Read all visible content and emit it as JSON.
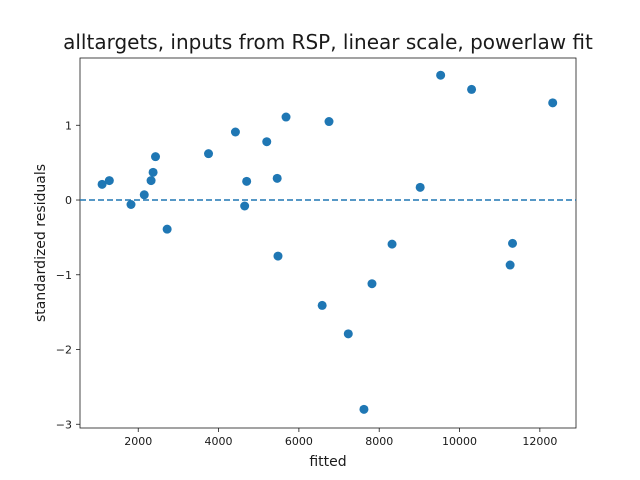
{
  "chart_data": {
    "type": "scatter",
    "title": "alltargets, inputs from RSP, linear scale, powerlaw fit",
    "xlabel": "fitted",
    "ylabel": "standardized residuals",
    "xlim": [
      550,
      12900
    ],
    "ylim": [
      -3.05,
      1.9
    ],
    "xticks": [
      2000,
      4000,
      6000,
      8000,
      10000,
      12000
    ],
    "yticks": [
      -3,
      -2,
      -1,
      0,
      1
    ],
    "grid": false,
    "reference_line": {
      "y": 0,
      "style": "dashed"
    },
    "marker_color": "#1f77b4",
    "points": [
      {
        "x": 1100,
        "y": 0.21
      },
      {
        "x": 1280,
        "y": 0.26
      },
      {
        "x": 1820,
        "y": -0.06
      },
      {
        "x": 2150,
        "y": 0.07
      },
      {
        "x": 2320,
        "y": 0.26
      },
      {
        "x": 2370,
        "y": 0.37
      },
      {
        "x": 2430,
        "y": 0.58
      },
      {
        "x": 2720,
        "y": -0.39
      },
      {
        "x": 3750,
        "y": 0.62
      },
      {
        "x": 4420,
        "y": 0.91
      },
      {
        "x": 4650,
        "y": -0.08
      },
      {
        "x": 4700,
        "y": 0.25
      },
      {
        "x": 5200,
        "y": 0.78
      },
      {
        "x": 5460,
        "y": 0.29
      },
      {
        "x": 5480,
        "y": -0.75
      },
      {
        "x": 5680,
        "y": 1.11
      },
      {
        "x": 6580,
        "y": -1.41
      },
      {
        "x": 6750,
        "y": 1.05
      },
      {
        "x": 7230,
        "y": -1.79
      },
      {
        "x": 7620,
        "y": -2.8
      },
      {
        "x": 7820,
        "y": -1.12
      },
      {
        "x": 8320,
        "y": -0.59
      },
      {
        "x": 9020,
        "y": 0.17
      },
      {
        "x": 9530,
        "y": 1.67
      },
      {
        "x": 10300,
        "y": 1.48
      },
      {
        "x": 11260,
        "y": -0.87
      },
      {
        "x": 11320,
        "y": -0.58
      },
      {
        "x": 12320,
        "y": 1.3
      }
    ]
  }
}
